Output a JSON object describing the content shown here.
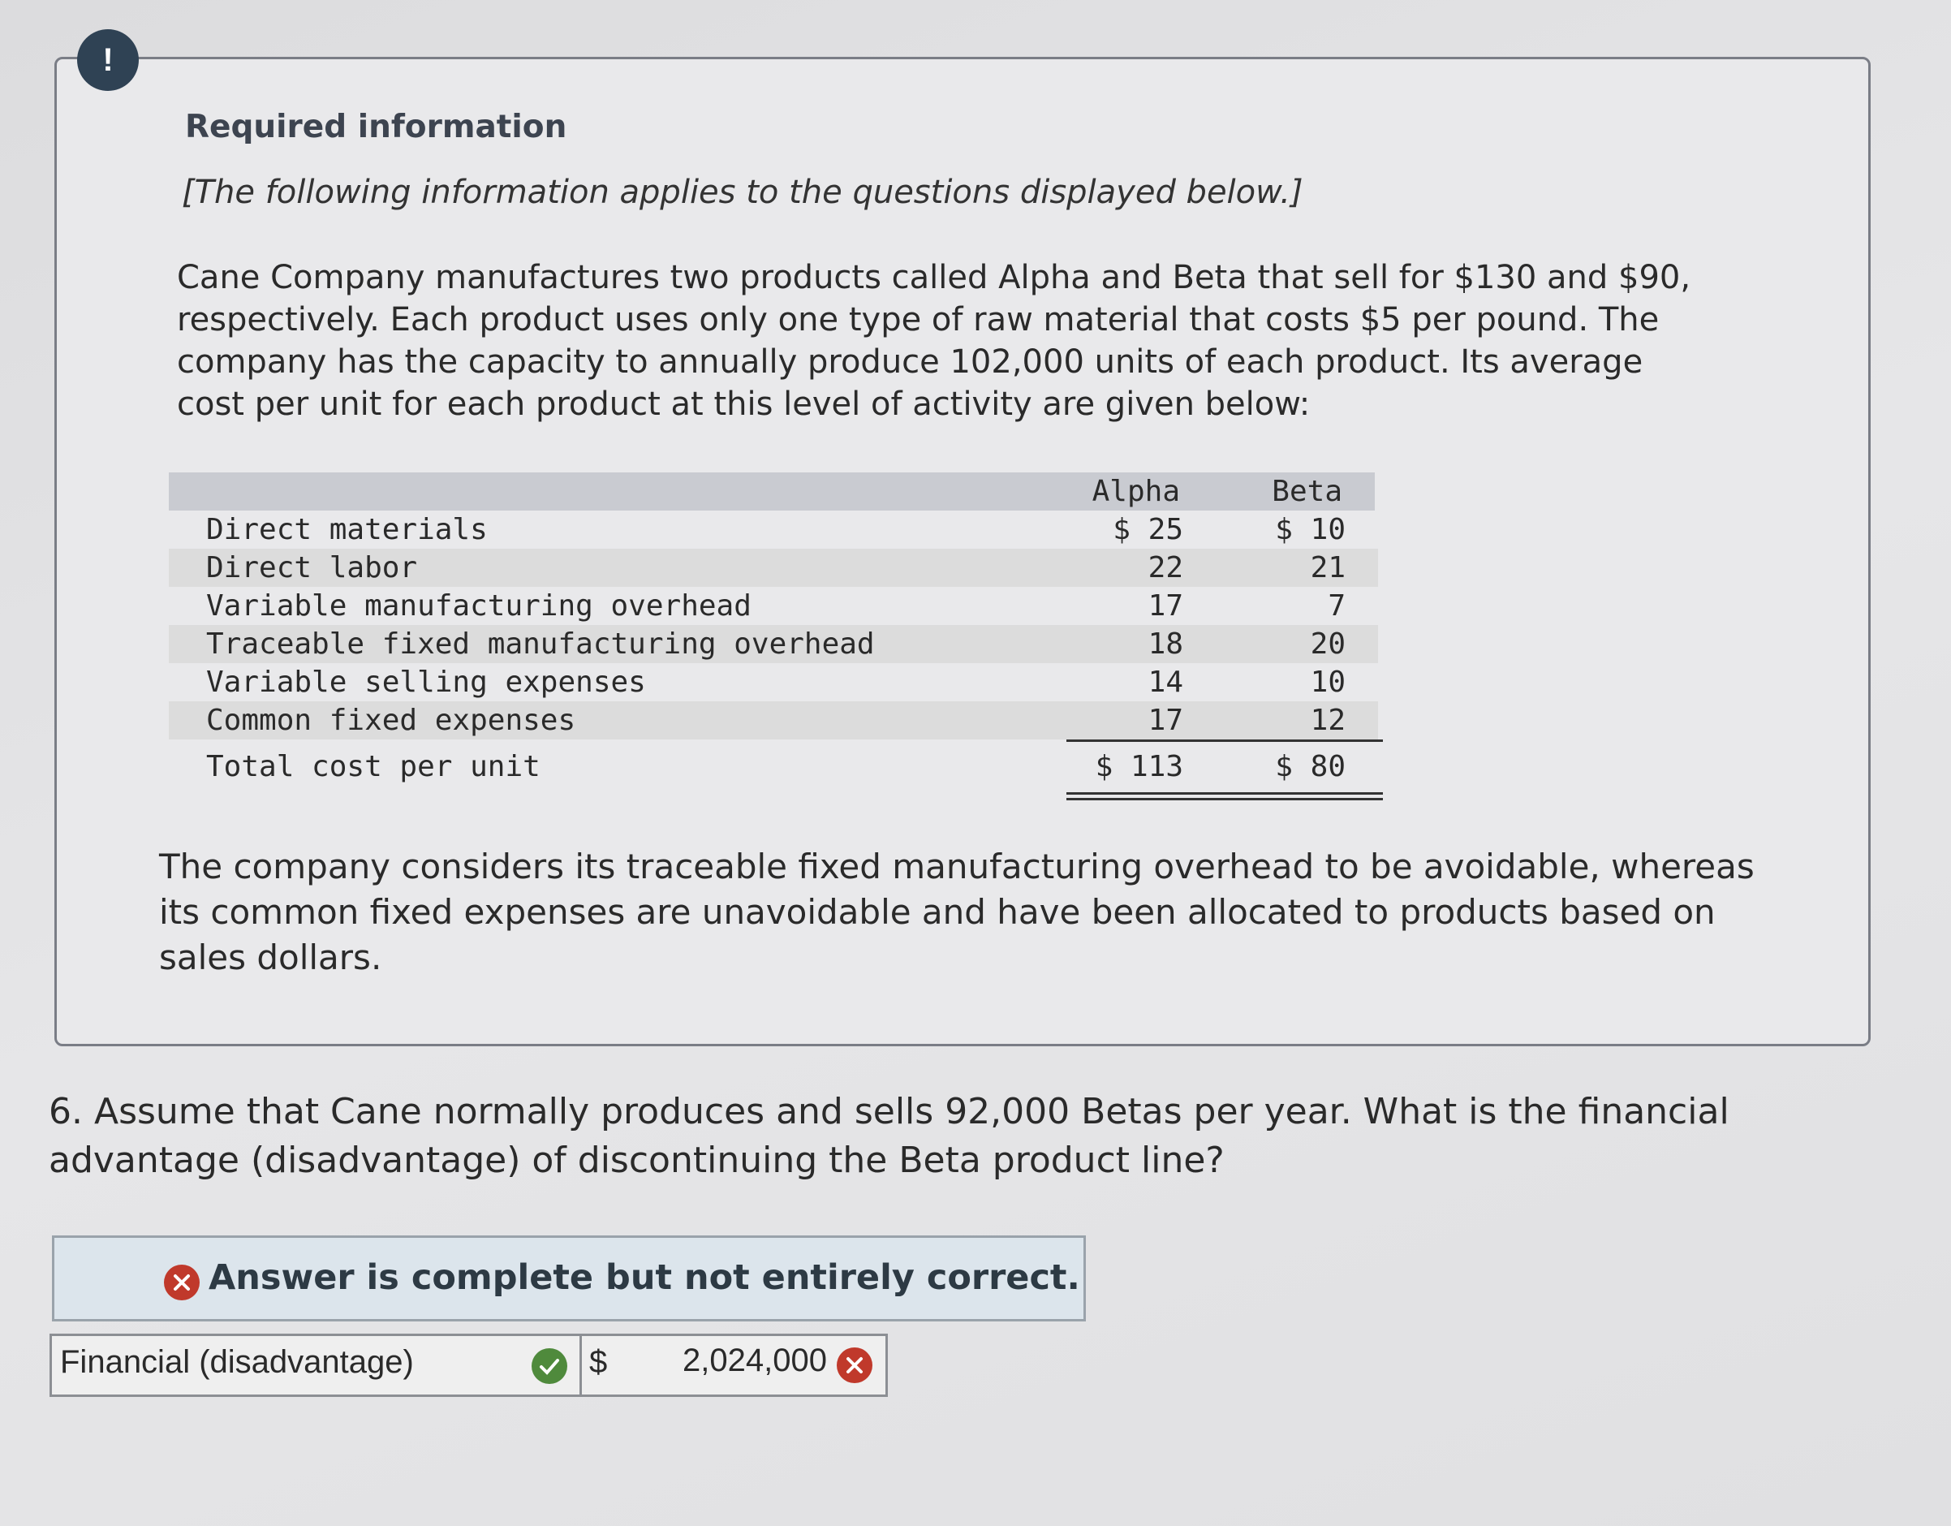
{
  "alert": {
    "icon_text": "!"
  },
  "info": {
    "heading": "Required information",
    "note": "[The following information applies to the questions displayed below.]",
    "paragraph_1": "Cane Company manufactures two products called Alpha and Beta that sell for $130 and $90, respectively. Each product uses only one type of raw material that costs $5 per pound. The company has the capacity to annually produce 102,000 units of each product. Its average cost per unit for each product at this level of activity are given below:",
    "table": {
      "columns": [
        "Alpha",
        "Beta"
      ],
      "rows": [
        [
          "Direct materials",
          "$ 25",
          "$ 10"
        ],
        [
          "Direct labor",
          "22",
          "21"
        ],
        [
          "Variable manufacturing overhead",
          "17",
          "7"
        ],
        [
          "Traceable fixed manufacturing overhead",
          "18",
          "20"
        ],
        [
          "Variable selling expenses",
          "14",
          "10"
        ],
        [
          "Common fixed expenses",
          "17",
          "12"
        ]
      ],
      "total": [
        "Total cost per unit",
        "$ 113",
        "$ 80"
      ]
    },
    "paragraph_2": "The company considers its traceable fixed manufacturing overhead to be avoidable, whereas its common fixed expenses are unavoidable and have been allocated to products based on sales dollars."
  },
  "question": "6. Assume that Cane normally produces and sells 92,000 Betas per year. What is the financial advantage (disadvantage) of discontinuing the Beta product line?",
  "answer": {
    "banner": "Answer is complete but not entirely correct.",
    "label": "Financial (disadvantage)",
    "currency": "$",
    "value": "2,024,000"
  }
}
